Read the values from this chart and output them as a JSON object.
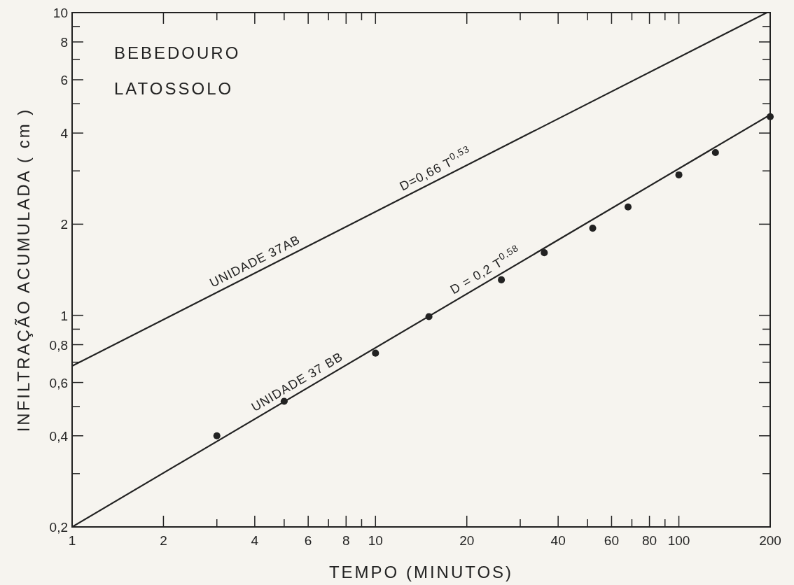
{
  "chart_data": {
    "type": "scatter",
    "title": "BEBEDOURO",
    "subtitle": "LATOSSOLO",
    "xlabel": "TEMPO   (MINUTOS)",
    "ylabel": "INFILTRAÇÃO ACUMULADA ( cm )",
    "log": "xy",
    "grid": false,
    "line_style": "solid",
    "xlim": [
      1,
      200
    ],
    "ylim": [
      0.2,
      10
    ],
    "xticks": [
      1,
      2,
      {
        "value": 3,
        "label": null
      },
      4,
      {
        "value": 5,
        "label": null
      },
      6,
      {
        "value": 7,
        "label": null
      },
      8,
      {
        "value": 9,
        "label": null
      },
      10,
      20,
      {
        "value": 30,
        "label": null
      },
      40,
      {
        "value": 50,
        "label": null
      },
      60,
      {
        "value": 70,
        "label": null
      },
      80,
      {
        "value": 90,
        "label": null
      },
      100,
      200
    ],
    "yticks": [
      {
        "value": 0.2,
        "label": "0,2"
      },
      {
        "value": 0.3,
        "label": null
      },
      {
        "value": 0.4,
        "label": "0,4"
      },
      {
        "value": 0.5,
        "label": null
      },
      {
        "value": 0.6,
        "label": "0,6"
      },
      {
        "value": 0.7,
        "label": null
      },
      {
        "value": 0.8,
        "label": "0,8"
      },
      {
        "value": 0.9,
        "label": null
      },
      1,
      2,
      {
        "value": 3,
        "label": null
      },
      4,
      {
        "value": 5,
        "label": null
      },
      6,
      {
        "value": 7,
        "label": null
      },
      8,
      {
        "value": 9,
        "label": null
      },
      10
    ],
    "series": [
      {
        "marker": "circle",
        "color": "#222222",
        "x": [
          3,
          5,
          10,
          15,
          26,
          36,
          52,
          68,
          100,
          132,
          200
        ],
        "values": [
          0.4,
          0.52,
          0.75,
          0.99,
          1.31,
          1.61,
          1.94,
          2.28,
          2.91,
          3.45,
          4.53
        ]
      },
      {
        "type": "line",
        "marker": "none",
        "name": "UNIDADE  37AB",
        "color": "#222222",
        "x": [
          1,
          195
        ],
        "values": [
          0.68,
          10
        ]
      },
      {
        "type": "line",
        "marker": "none",
        "name": "UNIDADE  37 BB",
        "color": "#222222",
        "x": [
          1,
          200
        ],
        "values": [
          0.2,
          4.6
        ]
      }
    ],
    "annotations": [
      "D=0,66  T$^{0,53}$",
      "D = 0,2  T$^{0,58}$"
    ]
  }
}
